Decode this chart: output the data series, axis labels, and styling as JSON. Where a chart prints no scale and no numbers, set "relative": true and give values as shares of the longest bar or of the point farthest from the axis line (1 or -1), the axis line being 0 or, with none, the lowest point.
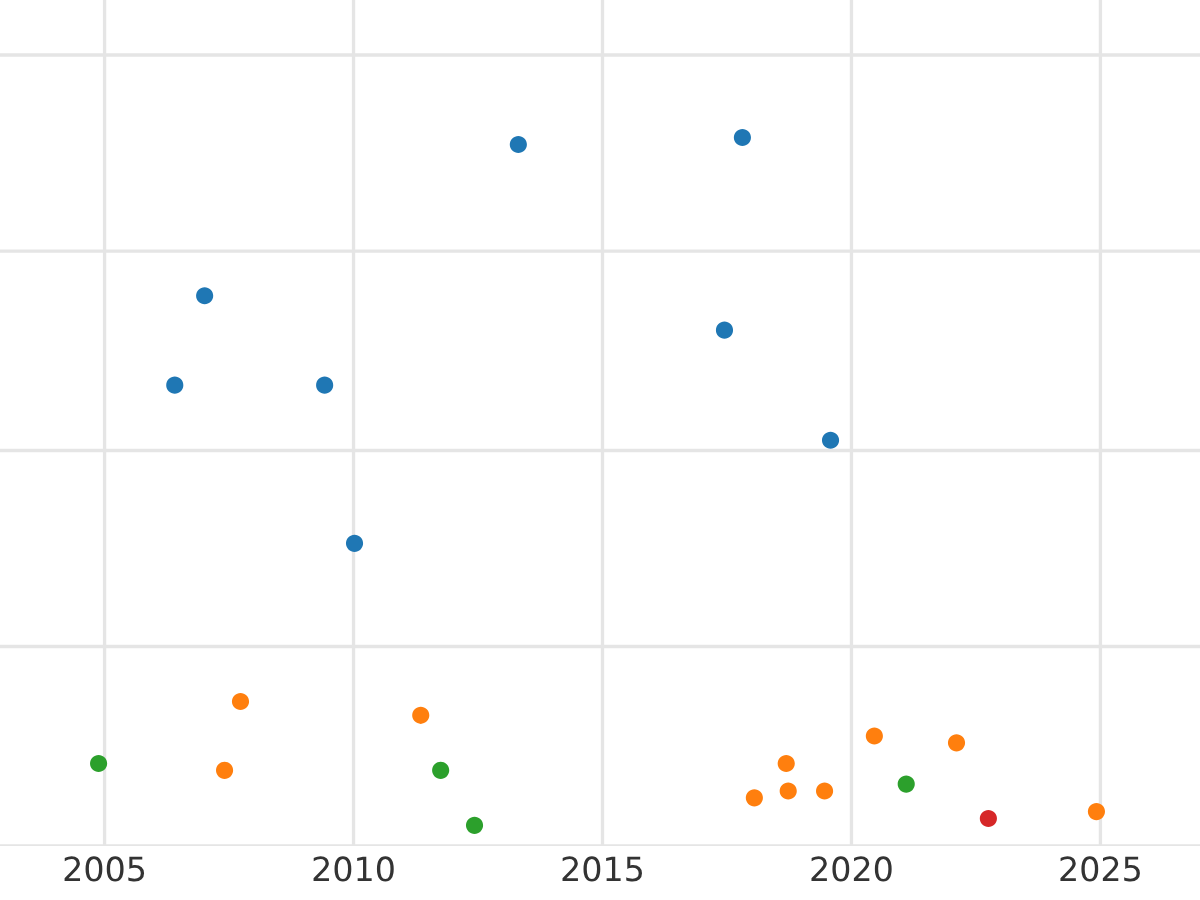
{
  "chart_data": {
    "type": "scatter",
    "relative": true,
    "grid": true,
    "marker": "circle",
    "xlim": [
      2002.9,
      2027.0
    ],
    "xticks": [
      2005,
      2010,
      2015,
      2020,
      2025
    ],
    "series": [
      {
        "color": "#1f77b4",
        "x": [
          2007.01,
          2006.41,
          2009.42,
          2010.02,
          2013.31,
          2017.81,
          2017.45,
          2019.58
        ],
        "values": [
          0.77,
          0.64,
          0.64,
          0.41,
          0.99,
          1.0,
          0.72,
          0.56
        ]
      },
      {
        "color": "#ff7f0e",
        "x": [
          2007.73,
          2007.41,
          2011.35,
          2018.05,
          2018.69,
          2018.73,
          2019.46,
          2020.46,
          2022.11,
          2024.92
        ],
        "values": [
          0.18,
          0.08,
          0.16,
          0.04,
          0.09,
          0.05,
          0.05,
          0.13,
          0.12,
          0.02
        ]
      },
      {
        "color": "#2ca02c",
        "x": [
          2004.88,
          2011.75,
          2012.43,
          2021.1
        ],
        "values": [
          0.09,
          0.08,
          0.0,
          0.06
        ]
      },
      {
        "color": "#d62728",
        "x": [
          2022.75
        ],
        "values": [
          0.01
        ]
      }
    ]
  }
}
